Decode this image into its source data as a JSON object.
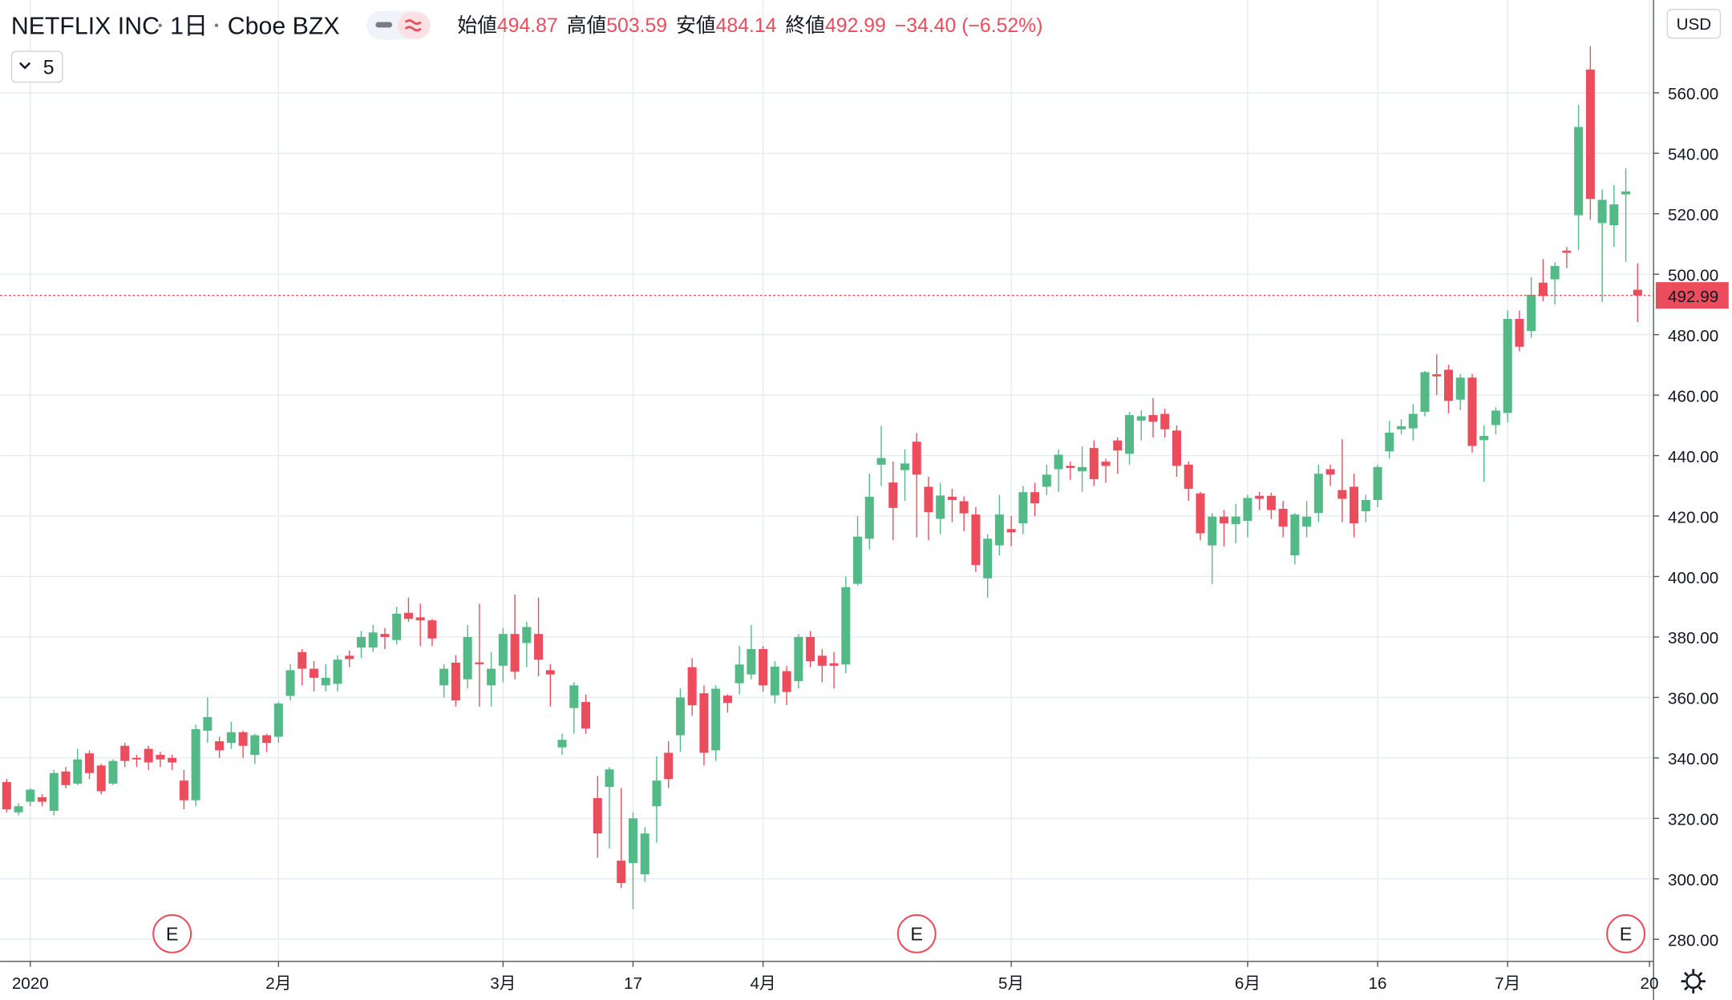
{
  "header": {
    "symbol": "NETFLIX INC",
    "interval": "1日",
    "exchange": "Cboe BZX",
    "ohlc": [
      {
        "label": "始値",
        "value": "494.87"
      },
      {
        "label": "高値",
        "value": "503.59"
      },
      {
        "label": "安値",
        "value": "484.14"
      },
      {
        "label": "終値",
        "value": "492.99"
      }
    ],
    "change": "−34.40 (−6.52%)"
  },
  "interval_selector": "5",
  "currency": "USD",
  "chart_data": {
    "type": "candlestick",
    "up_color": "#53b987",
    "down_color": "#eb4d5c",
    "open": [
      332,
      322,
      325.5,
      327,
      322.5,
      335.5,
      331.5,
      341.5,
      337.5,
      331.5,
      344,
      340,
      343,
      341,
      340,
      332.5,
      326,
      349,
      345.5,
      345,
      348.5,
      341,
      347.5,
      347,
      360.5,
      375,
      369.5,
      364,
      364.5,
      373.8,
      376.5,
      376.5,
      381,
      379,
      388,
      386.5,
      385.5,
      364,
      371.5,
      366,
      371.6,
      364,
      370.5,
      381,
      378,
      381,
      369,
      343.5,
      356.5,
      358.5,
      326.7,
      330.4,
      306,
      305.2,
      301.5,
      324,
      341.7,
      347.5,
      370,
      361.4,
      342.5,
      360.6,
      364.7,
      367.6,
      376,
      360.7,
      368.7,
      365.4,
      380,
      373.8,
      371.3,
      370.9,
      397.6,
      412.5,
      437,
      431.1,
      435.2,
      444.6,
      429.7,
      419.1,
      426.4,
      424.9,
      420.5,
      399.4,
      410.3,
      415.7,
      417.6,
      427.9,
      429.7,
      435.5,
      436.6,
      434.8,
      442.5,
      438,
      445,
      440.6,
      451.6,
      453.4,
      453.8,
      448.3,
      437,
      427.5,
      410.3,
      419.8,
      417.3,
      418.4,
      426.7,
      426.7,
      422.4,
      407,
      416.5,
      421,
      435.5,
      428.6,
      429.7,
      421.6,
      425.3,
      441.4,
      448.7,
      449,
      454.5,
      466.9,
      468.4,
      458.5,
      465.8,
      445.1,
      450.1,
      454.1,
      485.2,
      481.2,
      497.2,
      498.3,
      507.8,
      519.5,
      567.7,
      516.9,
      516.2,
      526.4,
      494.87
    ],
    "high": [
      333,
      325,
      330,
      328,
      336,
      337,
      343,
      342.5,
      338,
      339.5,
      345,
      341,
      344,
      342,
      341,
      336,
      351,
      360,
      347,
      352,
      349,
      348,
      348,
      358.5,
      371,
      376,
      372,
      371,
      374,
      375.5,
      382,
      384,
      383,
      390,
      393,
      391,
      386,
      371,
      374,
      384,
      391,
      375,
      383,
      394,
      385,
      393,
      371,
      348,
      365,
      361,
      334,
      337,
      330,
      322,
      317,
      340.5,
      345.5,
      363,
      373,
      364,
      364,
      361,
      377,
      384,
      377,
      372,
      370.4,
      381,
      382,
      376,
      375,
      400,
      420,
      434,
      449.8,
      438,
      442,
      447.5,
      433,
      431,
      429,
      426.5,
      423,
      414,
      427,
      420,
      430,
      431,
      437,
      442,
      438,
      443,
      445,
      439,
      446,
      454.5,
      455,
      459,
      455.5,
      450,
      438,
      428,
      421,
      422,
      424,
      427,
      428,
      427.7,
      425,
      421,
      425,
      437,
      437,
      445.4,
      434,
      427,
      437,
      451.5,
      452,
      457,
      468,
      473.5,
      470,
      467,
      467,
      450,
      456,
      488,
      488,
      499,
      505,
      504,
      509,
      556,
      575.4,
      528,
      529.5,
      535,
      503.59
    ],
    "low": [
      322,
      321,
      324,
      324,
      321,
      330,
      331,
      333,
      328,
      331,
      337,
      337,
      336,
      337,
      336,
      323,
      324,
      345,
      340,
      343,
      340,
      338,
      342,
      345,
      359,
      364,
      362,
      362,
      362,
      370,
      373,
      375,
      376,
      377.5,
      385,
      377,
      377,
      360,
      357,
      363,
      357,
      357,
      365,
      366,
      370,
      367,
      357,
      341,
      348,
      348,
      307,
      310,
      297,
      290,
      299,
      312,
      330,
      342,
      354,
      337.5,
      339,
      355,
      361,
      366,
      362,
      358,
      357.5,
      363,
      370,
      365,
      363,
      368,
      397,
      409,
      430,
      412,
      425,
      413,
      412,
      414,
      418,
      415,
      401.5,
      393,
      407,
      410,
      414,
      420,
      427,
      428,
      432,
      428,
      430,
      431,
      434,
      437,
      445,
      446,
      446,
      433,
      425,
      412,
      397.5,
      410,
      411,
      413,
      422,
      419,
      413,
      404,
      413,
      418,
      430,
      418,
      413,
      418,
      423,
      439,
      447,
      445,
      453,
      460,
      454,
      455,
      441,
      431.3,
      447,
      451,
      474.5,
      479,
      491,
      490,
      502,
      508,
      518,
      490.8,
      509,
      504,
      484.14
    ],
    "close": [
      323,
      324,
      329.5,
      325.5,
      335,
      331,
      339.5,
      335,
      329,
      339,
      339,
      339.5,
      338.5,
      339.5,
      338.5,
      326,
      349.5,
      353.5,
      342.5,
      348.5,
      344,
      347.5,
      345,
      358,
      369,
      369.5,
      366.5,
      366.5,
      372.5,
      372.7,
      380,
      381.5,
      380,
      387.7,
      386,
      385.5,
      379.5,
      369.5,
      359,
      380,
      371,
      369.5,
      381,
      368.5,
      383.3,
      372.5,
      367.6,
      346,
      364,
      349.7,
      315,
      336.2,
      298.6,
      320,
      315,
      332.5,
      333,
      360,
      357.4,
      341.7,
      362.9,
      358.2,
      370.9,
      376,
      364,
      370.2,
      361.8,
      380,
      372,
      370.5,
      370.5,
      396.5,
      413.2,
      426.4,
      439.2,
      422.7,
      437.4,
      433.7,
      421.3,
      426.8,
      425.3,
      420.9,
      403.8,
      412.5,
      420.5,
      414.6,
      427.9,
      424.2,
      433.7,
      440.3,
      435.9,
      436.2,
      432.2,
      436.6,
      441.7,
      453.4,
      453,
      451.2,
      448.7,
      436.6,
      429,
      414.3,
      419.8,
      417.6,
      419.8,
      426,
      425.7,
      422,
      416.5,
      420.5,
      419.8,
      434,
      433.7,
      425.7,
      417.6,
      425.3,
      436.2,
      447.6,
      449.7,
      453.8,
      467.6,
      466.2,
      458.1,
      465.8,
      443.2,
      446.5,
      454.9,
      485.2,
      476,
      493.2,
      492.8,
      502.7,
      507.1,
      548.7,
      524.9,
      524.6,
      523.1,
      527.39,
      492.99
    ],
    "ylim": [
      272.7,
      590.7
    ],
    "yticks": [
      {
        "value": 280,
        "label": "280.00"
      },
      {
        "value": 300,
        "label": "300.00"
      },
      {
        "value": 320,
        "label": "320.00"
      },
      {
        "value": 340,
        "label": "340.00"
      },
      {
        "value": 360,
        "label": "360.00"
      },
      {
        "value": 380,
        "label": "380.00"
      },
      {
        "value": 400,
        "label": "400.00"
      },
      {
        "value": 420,
        "label": "420.00"
      },
      {
        "value": 440,
        "label": "440.00"
      },
      {
        "value": 460,
        "label": "460.00"
      },
      {
        "value": 480,
        "label": "480.00"
      },
      {
        "value": 500,
        "label": "500.00"
      },
      {
        "value": 520,
        "label": "520.00"
      },
      {
        "value": 540,
        "label": "540.00"
      },
      {
        "value": 560,
        "label": "560.00"
      }
    ],
    "xticks": [
      {
        "value": 2,
        "label": "2020"
      },
      {
        "value": 23,
        "label": "2月"
      },
      {
        "value": 42,
        "label": "3月"
      },
      {
        "value": 53,
        "label": "17"
      },
      {
        "value": 64,
        "label": "4月"
      },
      {
        "value": 85,
        "label": "5月"
      },
      {
        "value": 105,
        "label": "6月"
      },
      {
        "value": 116,
        "label": "16"
      },
      {
        "value": 127,
        "label": "7月"
      },
      {
        "value": 139,
        "label": "20"
      }
    ],
    "last_price": {
      "value": 492.99,
      "label": "492.99"
    },
    "events": [
      {
        "index": 14,
        "label": "E"
      },
      {
        "index": 77,
        "label": "E"
      },
      {
        "index": 137,
        "label": "E"
      }
    ],
    "grid": true
  }
}
